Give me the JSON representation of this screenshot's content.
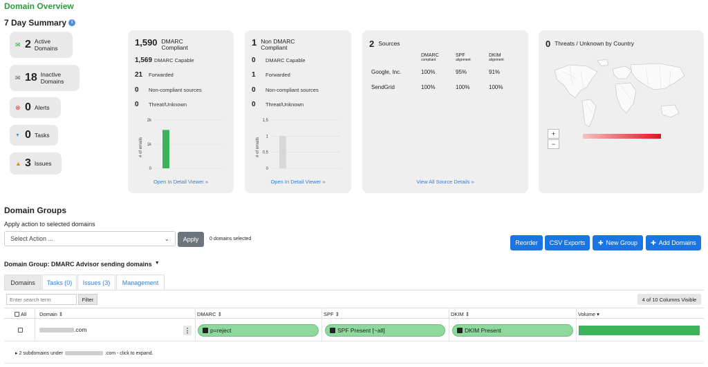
{
  "page": {
    "title": "Domain Overview",
    "summary_title": "7 Day Summary",
    "info_icon": "i"
  },
  "stats": [
    {
      "icon": "envelope-open-icon",
      "glyph": "✉",
      "color": "#2a9d3c",
      "value": "2",
      "label": "Active Domains"
    },
    {
      "icon": "envelope-icon",
      "glyph": "✉",
      "color": "#555",
      "value": "18",
      "label": "Inactive Domains"
    },
    {
      "icon": "alert-icon",
      "glyph": "⊗",
      "color": "#d9363e",
      "value": "0",
      "label": "Alerts"
    },
    {
      "icon": "pin-icon",
      "glyph": "📌",
      "color": "#4a90e2",
      "value": "0",
      "label": "Tasks"
    },
    {
      "icon": "warning-icon",
      "glyph": "▲",
      "color": "#e8891c",
      "value": "3",
      "label": "Issues"
    }
  ],
  "dmarc_card": {
    "big": "1,590",
    "heading": "DMARC Compliant",
    "rows": [
      {
        "n": "1,569",
        "t": "DMARC Capable"
      },
      {
        "n": "21",
        "t": "Forwarded"
      },
      {
        "n": "0",
        "t": "Non-compliant sources"
      },
      {
        "n": "0",
        "t": "Threat/Unknown"
      }
    ],
    "y_ticks": [
      "2k",
      "1k",
      "0"
    ],
    "y_label": "# of emails",
    "link": "Open In Detail Viewer »"
  },
  "nondmarc_card": {
    "big": "1",
    "heading": "Non DMARC Compliant",
    "rows": [
      {
        "n": "0",
        "t": "DMARC Capable"
      },
      {
        "n": "1",
        "t": "Forwarded"
      },
      {
        "n": "0",
        "t": "Non-compliant sources"
      },
      {
        "n": "0",
        "t": "Threat/Unknown"
      }
    ],
    "y_ticks": [
      "1,5",
      "1",
      "0,5",
      "0"
    ],
    "y_label": "# of emails",
    "link": "Open In Detail Viewer »"
  },
  "chart_data": [
    {
      "type": "bar",
      "categories": [
        ""
      ],
      "values": [
        1590
      ],
      "ylim": [
        0,
        2000
      ],
      "ylabel": "# of emails",
      "color": "#3cb35a"
    },
    {
      "type": "bar",
      "categories": [
        ""
      ],
      "values": [
        1
      ],
      "ylim": [
        0,
        1.5
      ],
      "ylabel": "# of emails",
      "color": "#d8d8d8"
    }
  ],
  "sources_card": {
    "big": "2",
    "heading": "Sources",
    "columns": [
      {
        "name": "DMARC",
        "sub": "compliant"
      },
      {
        "name": "SPF",
        "sub": "alignment"
      },
      {
        "name": "DKIM",
        "sub": "alignment"
      }
    ],
    "rows": [
      {
        "name": "Google, Inc.",
        "values": [
          "100%",
          "95%",
          "91%"
        ]
      },
      {
        "name": "SendGrid",
        "values": [
          "100%",
          "100%",
          "100%"
        ]
      }
    ],
    "link": "View All Source Details »"
  },
  "threats_card": {
    "big": "0",
    "heading": "Threats / Unknown by Country",
    "zoom_in": "+",
    "zoom_out": "−"
  },
  "groups": {
    "title": "Domain Groups",
    "apply_label": "Apply action to selected domains",
    "select_placeholder": "Select Action ...",
    "apply_button": "Apply",
    "selected_text": "0 domains selected",
    "buttons": {
      "reorder": "Reorder",
      "csv": "CSV Exports",
      "new_group": "New Group",
      "add_domains": "Add Domains"
    },
    "group_name": "Domain Group: DMARC Advisor sending domains"
  },
  "tabs": [
    "Domains",
    "Tasks (0)",
    "Issues (3)",
    "Management"
  ],
  "table": {
    "search_placeholder": "Enter search term",
    "filter_button": "Filter",
    "columns_visible": "4 of 10 Columns Visible",
    "headers": {
      "all": "All",
      "domain": "Domain ⇕",
      "dmarc": "DMARC ⇕",
      "spf": "SPF ⇕",
      "dkim": "DKIM ⇕",
      "volume": "Volume ▾"
    },
    "row": {
      "domain_suffix": ".com",
      "menu": "⋮",
      "dmarc": "p=reject",
      "spf": "SPF Present [~all]",
      "dkim": "DKIM Present",
      "volume": 1.0
    },
    "subdomain_prefix": "▸ 2 subdomains under",
    "subdomain_suffix": ".com - click to expand."
  }
}
